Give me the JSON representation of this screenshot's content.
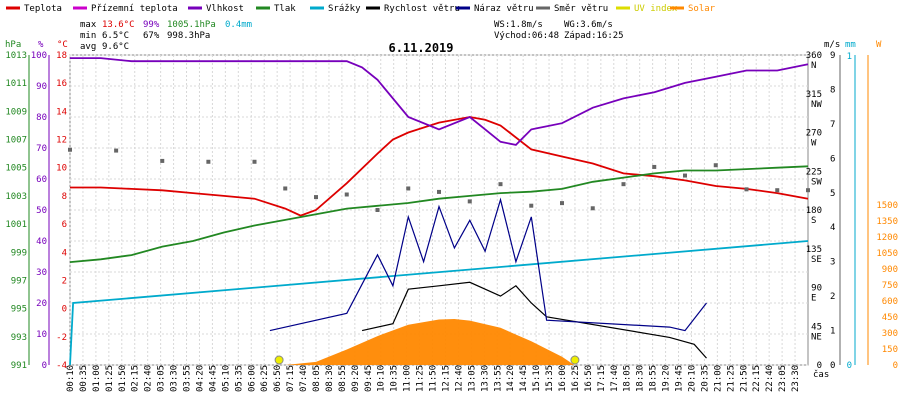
{
  "chart_data": {
    "type": "line",
    "title": "6.11.2019",
    "legend": [
      {
        "label": "Teplota",
        "color": "#dd0000"
      },
      {
        "label": "Přízemní teplota",
        "color": "#cc00cc"
      },
      {
        "label": "Vlhkost",
        "color": "#7700bb"
      },
      {
        "label": "Tlak",
        "color": "#228822"
      },
      {
        "label": "Srážky",
        "color": "#00aacc"
      },
      {
        "label": "Rychlost větru",
        "color": "#000000"
      },
      {
        "label": "Náraz větru",
        "color": "#000088"
      },
      {
        "label": "Směr větru",
        "color": "#666666"
      },
      {
        "label": "UV index",
        "color": "#dddd00"
      },
      {
        "label": "Solar",
        "color": "#ff8800"
      }
    ],
    "stats": {
      "max_label": "max",
      "max_temp": "13.6°C",
      "max_hum": "99%",
      "max_press": "1005.1hPa",
      "max_rain": "0.4mm",
      "min_label": "min",
      "min_temp": "6.5°C",
      "min_hum": "67%",
      "min_press": "998.3hPa",
      "avg_label": "avg",
      "avg_temp": "9.6°C",
      "ws": "WS:1.8m/s",
      "wg": "WG:3.6m/s",
      "sunrise": "Východ:06:48",
      "sunset": "Západ:16:25"
    },
    "axes": {
      "hpa_unit": "hPa",
      "pct_unit": "%",
      "temp_unit": "°C",
      "ms_unit": "m/s",
      "mm_unit": "mm",
      "w_unit": "W",
      "x_unit": "čas",
      "hpa_ticks": [
        "1013",
        "1011",
        "1009",
        "1007",
        "1005",
        "1003",
        "1001",
        "999",
        "997",
        "995",
        "993",
        "991"
      ],
      "pct_ticks": [
        "100",
        "90",
        "80",
        "70",
        "60",
        "50",
        "40",
        "30",
        "20",
        "10",
        "0"
      ],
      "temp_ticks": [
        "18",
        "16",
        "14",
        "12",
        "10",
        "8",
        "6",
        "4",
        "2",
        "0",
        "-2",
        "-4"
      ],
      "dir_ticks": [
        "360",
        "315",
        "270",
        "225",
        "180",
        "135",
        "90",
        "45",
        "0"
      ],
      "dir_labels": [
        "N",
        "NW",
        "W",
        "SW",
        "S",
        "SE",
        "E",
        "NE"
      ],
      "ms_ticks": [
        "9",
        "8",
        "7",
        "6",
        "5",
        "4",
        "3",
        "2",
        "1",
        "0"
      ],
      "mm_ticks": [
        "1",
        "0"
      ],
      "w_ticks": [
        "1500",
        "1350",
        "1200",
        "1050",
        "900",
        "750",
        "600",
        "450",
        "300",
        "150",
        "0"
      ],
      "x_ticks": [
        "00:10",
        "00:35",
        "01:00",
        "01:25",
        "01:50",
        "02:15",
        "02:40",
        "03:05",
        "03:30",
        "03:55",
        "04:20",
        "04:45",
        "05:10",
        "05:35",
        "06:00",
        "06:25",
        "06:50",
        "07:15",
        "07:40",
        "08:05",
        "08:30",
        "08:55",
        "09:20",
        "09:45",
        "10:10",
        "10:35",
        "11:00",
        "11:25",
        "11:50",
        "12:15",
        "12:40",
        "13:05",
        "13:30",
        "13:55",
        "14:20",
        "14:45",
        "15:10",
        "15:35",
        "16:00",
        "16:25",
        "16:50",
        "17:15",
        "17:40",
        "18:05",
        "18:30",
        "18:55",
        "19:20",
        "19:45",
        "20:10",
        "20:35",
        "21:00",
        "21:25",
        "21:50",
        "22:15",
        "22:40",
        "23:05",
        "23:30"
      ]
    },
    "series": [
      {
        "name": "Teplota",
        "unit": "°C",
        "x_hours": [
          0,
          1,
          2,
          3,
          4,
          5,
          6,
          7,
          7.5,
          8,
          9,
          10,
          10.5,
          11,
          12,
          13,
          13.5,
          14,
          15,
          16,
          17,
          18,
          19,
          20,
          21,
          22,
          23,
          24
        ],
        "values": [
          8.6,
          8.6,
          8.5,
          8.4,
          8.2,
          8.0,
          7.8,
          7.1,
          6.6,
          7.0,
          8.9,
          11.0,
          12.0,
          12.5,
          13.2,
          13.6,
          13.4,
          13.0,
          11.3,
          10.8,
          10.3,
          9.6,
          9.4,
          9.1,
          8.7,
          8.5,
          8.2,
          7.8
        ]
      },
      {
        "name": "Vlhkost",
        "unit": "%",
        "x_hours": [
          0,
          1,
          2,
          3,
          4,
          5,
          6,
          7,
          8,
          9,
          9.5,
          10,
          11,
          12,
          13,
          14,
          14.5,
          15,
          16,
          17,
          18,
          19,
          20,
          21,
          22,
          23,
          24
        ],
        "values": [
          99,
          99,
          98,
          98,
          98,
          98,
          98,
          98,
          98,
          98,
          96,
          92,
          80,
          76,
          80,
          72,
          71,
          76,
          78,
          83,
          86,
          88,
          91,
          93,
          95,
          95,
          97
        ]
      },
      {
        "name": "Tlak",
        "unit": "hPa",
        "x_hours": [
          0,
          1,
          2,
          3,
          4,
          5,
          6,
          7,
          8,
          9,
          10,
          11,
          12,
          13,
          14,
          15,
          16,
          17,
          18,
          19,
          20,
          21,
          22,
          23,
          24
        ],
        "values": [
          998.3,
          998.5,
          998.8,
          999.4,
          999.8,
          1000.4,
          1000.9,
          1001.3,
          1001.7,
          1002.1,
          1002.3,
          1002.5,
          1002.8,
          1003.0,
          1003.2,
          1003.3,
          1003.5,
          1004.0,
          1004.3,
          1004.6,
          1004.8,
          1004.8,
          1004.9,
          1005.0,
          1005.1
        ]
      },
      {
        "name": "Srážky",
        "unit": "mm",
        "x_hours": [
          0,
          0.1,
          24
        ],
        "values": [
          0,
          0.2,
          0.4
        ]
      },
      {
        "name": "Rychlost větru",
        "unit": "m/s",
        "x_hours": [
          9.5,
          10.5,
          11,
          12,
          13,
          14,
          14.5,
          15,
          15.5,
          19.5,
          20.3,
          20.7
        ],
        "values": [
          1.0,
          1.2,
          2.2,
          2.3,
          2.4,
          2.0,
          2.3,
          1.8,
          1.4,
          0.8,
          0.6,
          0.2
        ]
      },
      {
        "name": "Náraz větru",
        "unit": "m/s",
        "x_hours": [
          6.5,
          9,
          10,
          10.5,
          11,
          11.5,
          12,
          12.5,
          13,
          13.5,
          14,
          14.5,
          15,
          15.5,
          19.5,
          20,
          20.7
        ],
        "values": [
          1.0,
          1.5,
          3.2,
          2.3,
          4.3,
          3.0,
          4.6,
          3.4,
          4.2,
          3.3,
          4.8,
          3.0,
          4.3,
          1.3,
          1.1,
          1.0,
          1.8
        ]
      },
      {
        "name": "Směr větru",
        "unit": "°",
        "x_hours": [
          0,
          1.5,
          3,
          4.5,
          6,
          7,
          8,
          9,
          10,
          11,
          12,
          13,
          14,
          15,
          16,
          17,
          18,
          19,
          20,
          21,
          22,
          23,
          24
        ],
        "values": [
          250,
          249,
          237,
          236,
          236,
          205,
          195,
          198,
          180,
          205,
          201,
          190,
          210,
          185,
          188,
          182,
          210,
          230,
          220,
          232,
          204,
          203,
          203
        ]
      },
      {
        "name": "Solar",
        "unit": "W",
        "x_hours": [
          7,
          8,
          9,
          10,
          11,
          12,
          12.5,
          13,
          14,
          15,
          16,
          16.4
        ],
        "values": [
          0,
          30,
          150,
          280,
          390,
          440,
          445,
          430,
          360,
          230,
          80,
          0
        ]
      }
    ]
  }
}
